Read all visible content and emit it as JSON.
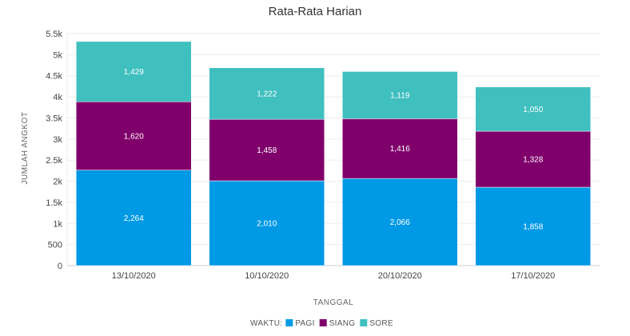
{
  "chart_data": {
    "type": "bar",
    "stacked": true,
    "title": "Rata-Rata Harian",
    "xlabel": "TANGGAL",
    "ylabel": "JUMLAH ANGKOT",
    "categories": [
      "13/10/2020",
      "10/10/2020",
      "20/10/2020",
      "17/10/2020"
    ],
    "series": [
      {
        "name": "PAGI",
        "color": "#0099e6",
        "values": [
          2264,
          2010,
          2066,
          1858
        ],
        "labels": [
          "2,264",
          "2,010",
          "2,066",
          "1,858"
        ]
      },
      {
        "name": "SIANG",
        "color": "#80006b",
        "values": [
          1620,
          1458,
          1416,
          1328
        ],
        "labels": [
          "1,620",
          "1,458",
          "1,416",
          "1,328"
        ]
      },
      {
        "name": "SORE",
        "color": "#40bfbf",
        "values": [
          1429,
          1222,
          1119,
          1050
        ],
        "labels": [
          "1,429",
          "1,222",
          "1,119",
          "1,050"
        ]
      }
    ],
    "ylim": [
      0,
      5500
    ],
    "yticks": [
      0,
      500,
      1000,
      1500,
      2000,
      2500,
      3000,
      3500,
      4000,
      4500,
      5000,
      5500
    ],
    "ytick_labels": [
      "0",
      "500",
      "1k",
      "1.5k",
      "2k",
      "2.5k",
      "3k",
      "3.5k",
      "4k",
      "4.5k",
      "5k",
      "5.5k"
    ],
    "grid": true,
    "legend": {
      "title": "WAKTU:",
      "position": "bottom"
    }
  }
}
